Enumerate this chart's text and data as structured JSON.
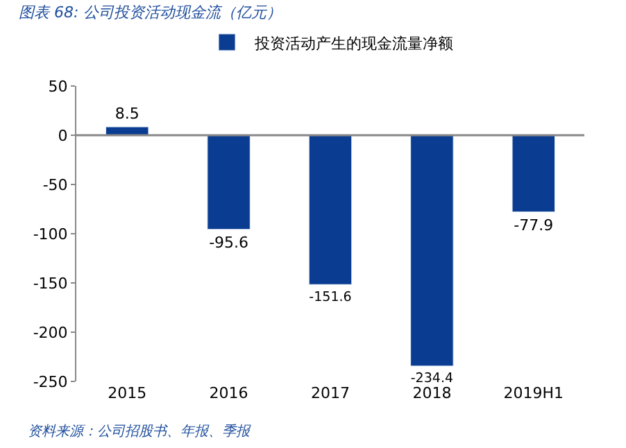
{
  "chart_data": {
    "type": "bar",
    "title": "图表 68: 公司投资活动现金流（亿元）",
    "categories": [
      "2015",
      "2016",
      "2017",
      "2018",
      "2019H1"
    ],
    "series": [
      {
        "name": "投资活动产生的现金流量净额",
        "color": "#0a3d91",
        "values": [
          8.5,
          -95.6,
          -151.6,
          -234.4,
          -77.9
        ]
      }
    ],
    "ylim": [
      -250,
      50
    ],
    "yticks": [
      -250,
      -200,
      -150,
      -100,
      -50,
      0,
      50
    ],
    "ref_lines": [
      {
        "axis": "y",
        "value": 0,
        "color": "#888888"
      }
    ],
    "legend": "top",
    "data_labels": true,
    "annotations": [
      "资料来源：公司招股书、年报、季报"
    ]
  }
}
